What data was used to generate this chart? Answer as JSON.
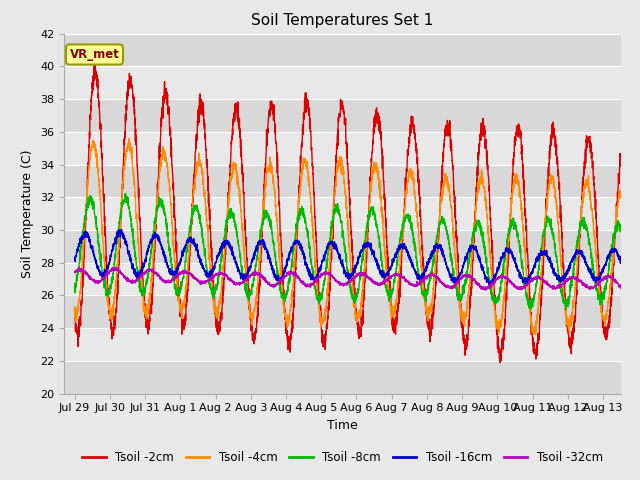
{
  "title": "Soil Temperatures Set 1",
  "xlabel": "Time",
  "ylabel": "Soil Temperature (C)",
  "ylim": [
    20,
    42
  ],
  "date_labels": [
    "Jul 29",
    "Jul 30",
    "Jul 31",
    "Aug 1",
    "Aug 2",
    "Aug 3",
    "Aug 4",
    "Aug 5",
    "Aug 6",
    "Aug 7",
    "Aug 8",
    "Aug 9",
    "Aug 10",
    "Aug 11",
    "Aug 12",
    "Aug 13"
  ],
  "date_ticks": [
    0,
    1,
    2,
    3,
    4,
    5,
    6,
    7,
    8,
    9,
    10,
    11,
    12,
    13,
    14,
    15
  ],
  "series": [
    {
      "label": "Tsoil -2cm",
      "color": "#dd0000"
    },
    {
      "label": "Tsoil -4cm",
      "color": "#ff8c00"
    },
    {
      "label": "Tsoil -8cm",
      "color": "#00bb00"
    },
    {
      "label": "Tsoil -16cm",
      "color": "#0000cc"
    },
    {
      "label": "Tsoil -32cm",
      "color": "#bb00bb"
    }
  ],
  "bg_color": "#e8e8e8",
  "plot_bg_color": "#e8e8e8",
  "grid_color": "#ffffff",
  "annotation_text": "VR_met",
  "annotation_bg": "#ffff99",
  "annotation_border": "#999900",
  "title_fontsize": 11,
  "axis_label_fontsize": 9,
  "tick_fontsize": 8,
  "legend_fontsize": 8.5
}
